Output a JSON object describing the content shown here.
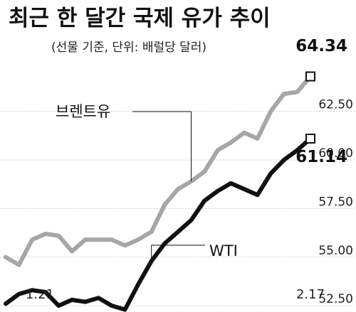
{
  "chart_data": {
    "type": "line",
    "title": "최근 한 달간 국제 유가 추이",
    "subtitle": "(선물 기준, 단위: 배럴당 달러)",
    "xlabel": "",
    "ylabel": "",
    "x_tick_labels": [
      "1.21",
      "2.17"
    ],
    "y_ticks": [
      "52.50",
      "55.00",
      "57.50",
      "60.00",
      "62.50"
    ],
    "ylim": [
      51.7,
      65.6
    ],
    "grid": true,
    "series": [
      {
        "name": "브렌트유",
        "color": "#a6a6a6",
        "end_label": "64.34",
        "values": [
          55.0,
          54.6,
          55.9,
          56.2,
          56.1,
          55.3,
          55.9,
          55.9,
          55.9,
          55.6,
          55.9,
          56.3,
          57.7,
          58.5,
          58.9,
          59.4,
          60.5,
          60.9,
          61.4,
          61.1,
          62.5,
          63.4,
          63.5,
          64.3
        ]
      },
      {
        "name": "WTI",
        "color": "#111111",
        "end_label": "61.14",
        "values": [
          52.6,
          53.1,
          53.3,
          53.2,
          52.5,
          52.8,
          52.7,
          52.9,
          52.5,
          52.3,
          53.6,
          54.8,
          55.7,
          56.3,
          56.9,
          57.9,
          58.4,
          58.8,
          58.5,
          58.2,
          59.3,
          60.0,
          60.5,
          61.1
        ]
      }
    ]
  }
}
